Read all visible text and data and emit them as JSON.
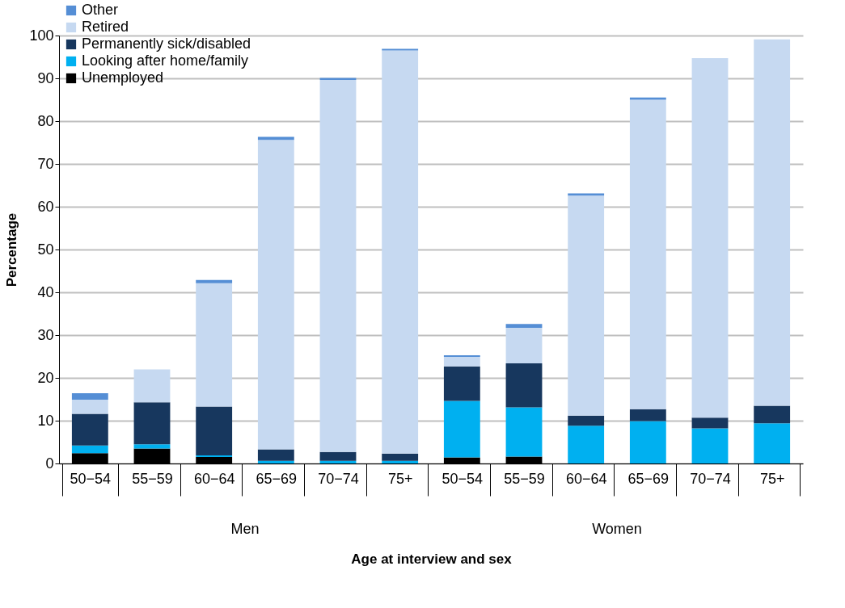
{
  "chart_data": {
    "type": "bar",
    "stacked": true,
    "xlabel": "Age at interview and sex",
    "ylabel": "Percentage",
    "categories": [
      "50−54",
      "55−59",
      "60−64",
      "65−69",
      "70−74",
      "75+",
      "50−54",
      "55−59",
      "60−64",
      "65−69",
      "70−74",
      "75+"
    ],
    "annotations": [
      "Men",
      "Women"
    ],
    "series": [
      {
        "name": "Unemployed",
        "color": "#000000",
        "values": [
          2.4,
          3.5,
          1.5,
          0,
          0,
          0,
          1.4,
          1.6,
          0,
          0,
          0,
          0
        ]
      },
      {
        "name": "Looking after home/family",
        "color": "#00b0f0",
        "values": [
          1.8,
          1.0,
          0.4,
          0.6,
          0.6,
          0.6,
          13.2,
          11.5,
          8.8,
          9.9,
          8.2,
          9.4
        ]
      },
      {
        "name": "Permanently sick/disabled",
        "color": "#17375e",
        "values": [
          7.4,
          9.8,
          11.4,
          2.7,
          2.1,
          1.7,
          8.1,
          10.3,
          2.4,
          2.8,
          2.5,
          4.1
        ]
      },
      {
        "name": "Retired",
        "color": "#c6d9f1",
        "values": [
          3.3,
          7.7,
          28.8,
          72.3,
          86.9,
          94.2,
          2.2,
          8.3,
          51.4,
          72.3,
          84.0,
          85.6
        ]
      },
      {
        "name": "Other",
        "color": "#558ed5",
        "values": [
          1.5,
          0,
          0.8,
          0.7,
          0.5,
          0.4,
          0.4,
          0.9,
          0.5,
          0.5,
          0,
          0
        ]
      }
    ],
    "ylim": [
      0,
      100
    ],
    "yticks": [
      0,
      10,
      20,
      30,
      40,
      50,
      60,
      70,
      80,
      90,
      100
    ],
    "grid": "y",
    "legend": "top left"
  }
}
